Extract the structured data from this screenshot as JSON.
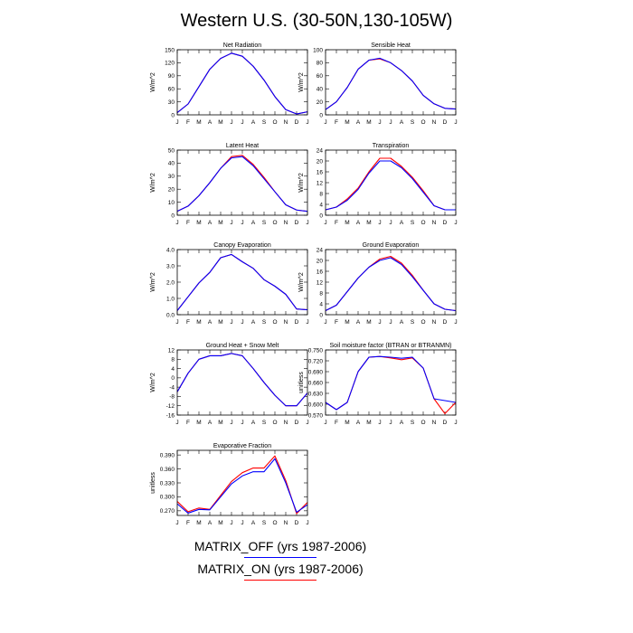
{
  "title": "Western U.S. (30-50N,130-105W)",
  "legend": {
    "items": [
      {
        "label": "MATRIX_OFF (yrs 1987-2006)",
        "color": "#0000ff"
      },
      {
        "label": "MATRIX_ON (yrs 1987-2006)",
        "color": "#ff0000"
      }
    ]
  },
  "chart_data": [
    {
      "type": "line",
      "title": "Net Radiation",
      "ylabel": "W/m^2",
      "categories": [
        "J",
        "F",
        "M",
        "A",
        "M",
        "J",
        "J",
        "A",
        "S",
        "O",
        "N",
        "D",
        "J"
      ],
      "ylim": [
        0,
        150
      ],
      "yticks": [
        0,
        30,
        60,
        90,
        120,
        150
      ],
      "ytick_labels": [
        "0",
        "30",
        "60",
        "90",
        "120",
        "150"
      ],
      "series": [
        {
          "color": "#ff0000",
          "values": [
            5,
            25,
            65,
            105,
            130,
            142,
            135,
            112,
            80,
            42,
            12,
            2,
            7
          ]
        },
        {
          "color": "#0000ff",
          "values": [
            5,
            25,
            65,
            105,
            130,
            142,
            135,
            112,
            80,
            42,
            12,
            2,
            7
          ]
        }
      ]
    },
    {
      "type": "line",
      "title": "Sensible Heat",
      "ylabel": "W/m^2",
      "categories": [
        "J",
        "F",
        "M",
        "A",
        "M",
        "J",
        "J",
        "A",
        "S",
        "O",
        "N",
        "D",
        "J"
      ],
      "ylim": [
        0,
        100
      ],
      "yticks": [
        0,
        20,
        40,
        60,
        80,
        100
      ],
      "ytick_labels": [
        "0",
        "20",
        "40",
        "60",
        "80",
        "100"
      ],
      "series": [
        {
          "color": "#ff0000",
          "values": [
            8,
            20,
            42,
            70,
            84,
            86,
            80,
            68,
            52,
            30,
            17,
            10,
            9
          ]
        },
        {
          "color": "#0000ff",
          "values": [
            8,
            20,
            42,
            70,
            84,
            87,
            80,
            68,
            52,
            30,
            17,
            10,
            9
          ]
        }
      ]
    },
    {
      "type": "line",
      "title": "Latent Heat",
      "ylabel": "W/m^2",
      "categories": [
        "J",
        "F",
        "M",
        "A",
        "M",
        "J",
        "J",
        "A",
        "S",
        "O",
        "N",
        "D",
        "J"
      ],
      "ylim": [
        0,
        50
      ],
      "yticks": [
        0,
        10,
        20,
        30,
        40,
        50
      ],
      "ytick_labels": [
        "0",
        "10",
        "20",
        "30",
        "40",
        "50"
      ],
      "series": [
        {
          "color": "#ff0000",
          "values": [
            3,
            7,
            15,
            25,
            36,
            45,
            46,
            39,
            29,
            18,
            8,
            4,
            3
          ]
        },
        {
          "color": "#0000ff",
          "values": [
            3,
            7,
            15,
            25,
            36,
            44,
            45,
            38,
            28,
            18,
            8,
            4,
            3
          ]
        }
      ]
    },
    {
      "type": "line",
      "title": "Transpiration",
      "ylabel": "W/m^2",
      "categories": [
        "J",
        "F",
        "M",
        "A",
        "M",
        "J",
        "J",
        "A",
        "S",
        "O",
        "N",
        "D",
        "J"
      ],
      "ylim": [
        0,
        24
      ],
      "yticks": [
        0,
        4,
        8,
        12,
        16,
        20,
        24
      ],
      "ytick_labels": [
        "0",
        "4",
        "8",
        "12",
        "16",
        "20",
        "24"
      ],
      "series": [
        {
          "color": "#ff0000",
          "values": [
            2,
            3,
            6,
            10,
            16,
            21,
            21,
            18,
            14,
            9,
            3.5,
            2,
            2
          ]
        },
        {
          "color": "#0000ff",
          "values": [
            2,
            3,
            5.5,
            9.5,
            15.5,
            20,
            20,
            17.5,
            13.5,
            8.5,
            3.5,
            2,
            2
          ]
        }
      ]
    },
    {
      "type": "line",
      "title": "Canopy Evaporation",
      "ylabel": "W/m^2",
      "categories": [
        "J",
        "F",
        "M",
        "A",
        "M",
        "J",
        "J",
        "A",
        "S",
        "O",
        "N",
        "D",
        "J"
      ],
      "ylim": [
        0,
        4
      ],
      "yticks": [
        0,
        1,
        2,
        3,
        4
      ],
      "ytick_labels": [
        "0.0",
        "1.0",
        "2.0",
        "3.0",
        "4.0"
      ],
      "series": [
        {
          "color": "#ff0000",
          "values": [
            0.25,
            1.1,
            1.95,
            2.6,
            3.5,
            3.7,
            3.25,
            2.85,
            2.15,
            1.75,
            1.25,
            0.35,
            0.3
          ]
        },
        {
          "color": "#0000ff",
          "values": [
            0.25,
            1.1,
            1.95,
            2.6,
            3.5,
            3.7,
            3.25,
            2.85,
            2.15,
            1.75,
            1.25,
            0.35,
            0.3
          ]
        }
      ]
    },
    {
      "type": "line",
      "title": "Ground Evaporation",
      "ylabel": "W/m^2",
      "categories": [
        "J",
        "F",
        "M",
        "A",
        "M",
        "J",
        "J",
        "A",
        "S",
        "O",
        "N",
        "D",
        "J"
      ],
      "ylim": [
        0,
        24
      ],
      "yticks": [
        0,
        4,
        8,
        12,
        16,
        20,
        24
      ],
      "ytick_labels": [
        "0",
        "4",
        "8",
        "12",
        "16",
        "20",
        "24"
      ],
      "series": [
        {
          "color": "#ff0000",
          "values": [
            1.5,
            3.5,
            8.5,
            13.5,
            17.5,
            20.5,
            21.5,
            19,
            14.5,
            9,
            4,
            2,
            1.5
          ]
        },
        {
          "color": "#0000ff",
          "values": [
            1.5,
            3.5,
            8.5,
            13.5,
            17.5,
            20,
            21,
            18.5,
            14,
            9,
            4,
            2,
            1.5
          ]
        }
      ]
    },
    {
      "type": "line",
      "title": "Ground Heat + Snow Melt",
      "ylabel": "W/m^2",
      "categories": [
        "J",
        "F",
        "M",
        "A",
        "M",
        "J",
        "J",
        "A",
        "S",
        "O",
        "N",
        "D",
        "J"
      ],
      "ylim": [
        -16,
        12
      ],
      "yticks": [
        -16,
        -12,
        -8,
        -4,
        0,
        4,
        8,
        12
      ],
      "ytick_labels": [
        "-16",
        "-12",
        "-8",
        "-4",
        "0",
        "4",
        "8",
        "12"
      ],
      "series": [
        {
          "color": "#ff0000",
          "values": [
            -6,
            2,
            8,
            9.5,
            9.5,
            10.5,
            9.5,
            4,
            -2,
            -7.5,
            -12,
            -12,
            -6.5
          ]
        },
        {
          "color": "#0000ff",
          "values": [
            -6,
            2,
            8,
            9.5,
            9.5,
            10.5,
            9.5,
            4,
            -2,
            -7.5,
            -12,
            -12,
            -6.5
          ]
        }
      ]
    },
    {
      "type": "line",
      "title": "Soil moisture factor (BTRAN or BTRANMN)",
      "ylabel": "unitless",
      "categories": [
        "J",
        "F",
        "M",
        "A",
        "M",
        "J",
        "J",
        "A",
        "S",
        "O",
        "N",
        "D",
        "J"
      ],
      "ylim": [
        0.57,
        0.75
      ],
      "yticks": [
        0.57,
        0.6,
        0.63,
        0.66,
        0.69,
        0.72,
        0.75
      ],
      "ytick_labels": [
        "0.570",
        "0.600",
        "0.630",
        "0.660",
        "0.690",
        "0.720",
        "0.750"
      ],
      "series": [
        {
          "color": "#ff0000",
          "values": [
            0.605,
            0.585,
            0.605,
            0.69,
            0.73,
            0.732,
            0.728,
            0.723,
            0.728,
            0.7,
            0.615,
            0.574,
            0.605
          ]
        },
        {
          "color": "#0000ff",
          "values": [
            0.605,
            0.585,
            0.605,
            0.69,
            0.73,
            0.732,
            0.73,
            0.727,
            0.73,
            0.7,
            0.615,
            0.61,
            0.605
          ]
        }
      ]
    },
    {
      "type": "line",
      "title": "Evaporative Fraction",
      "ylabel": "unitless",
      "categories": [
        "J",
        "F",
        "M",
        "A",
        "M",
        "J",
        "J",
        "A",
        "S",
        "O",
        "N",
        "D",
        "J"
      ],
      "ylim": [
        0.26,
        0.4
      ],
      "yticks": [
        0.27,
        0.3,
        0.33,
        0.36,
        0.39
      ],
      "ytick_labels": [
        "0.270",
        "0.300",
        "0.330",
        "0.360",
        "0.390"
      ],
      "series": [
        {
          "color": "#ff0000",
          "values": [
            0.29,
            0.268,
            0.276,
            0.273,
            0.303,
            0.333,
            0.352,
            0.362,
            0.362,
            0.388,
            0.335,
            0.264,
            0.288
          ]
        },
        {
          "color": "#0000ff",
          "values": [
            0.285,
            0.265,
            0.273,
            0.272,
            0.3,
            0.328,
            0.345,
            0.354,
            0.354,
            0.382,
            0.33,
            0.267,
            0.283
          ]
        }
      ]
    }
  ]
}
